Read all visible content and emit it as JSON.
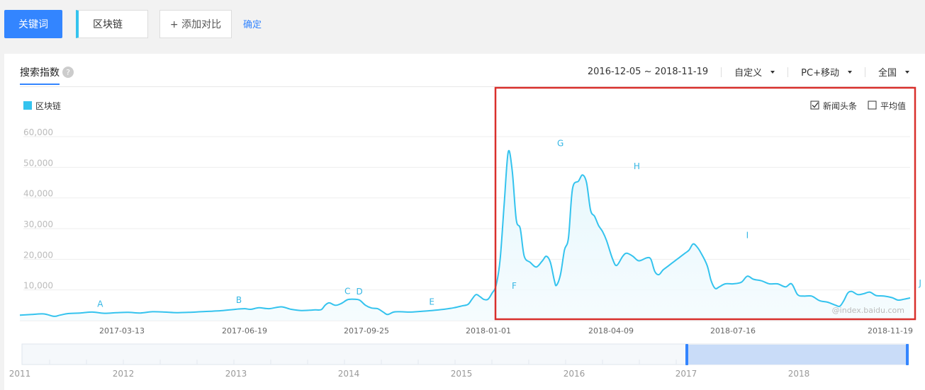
{
  "topbar": {
    "keyword_button": "关键词",
    "keyword": "区块链",
    "add_compare": "+ 添加对比",
    "confirm": "确定"
  },
  "panel": {
    "tab": "搜索指数",
    "help": "?",
    "date_range": "2016-12-05 ~ 2018-11-19",
    "custom": "自定义",
    "device": "PC+移动",
    "region": "全国"
  },
  "options": {
    "news": "新闻头条",
    "average": "平均值"
  },
  "colors": {
    "accent": "#3385ff",
    "series": "#34c3ee",
    "highlight_box": "#d9302c"
  },
  "chart_data": {
    "type": "area",
    "legend": "区块链",
    "watermark": "@index.baidu.com",
    "ylim": [
      0,
      60000
    ],
    "yticks": [
      "60,000",
      "50,000",
      "40,000",
      "30,000",
      "20,000",
      "10,000"
    ],
    "ytick_values": [
      60000,
      50000,
      40000,
      30000,
      20000,
      10000
    ],
    "xticks": [
      "2017-03-13",
      "2017-06-19",
      "2017-09-25",
      "2018-01-01",
      "2018-04-09",
      "2018-07-16",
      "2018-11-19"
    ],
    "series": [
      {
        "name": "区块链",
        "points": [
          [
            0,
            1800
          ],
          [
            6,
            2000
          ],
          [
            12,
            2200
          ],
          [
            17,
            1400
          ],
          [
            20,
            1800
          ],
          [
            24,
            2300
          ],
          [
            30,
            2500
          ],
          [
            36,
            2800
          ],
          [
            42,
            2400
          ],
          [
            48,
            2600
          ],
          [
            54,
            2700
          ],
          [
            60,
            2500
          ],
          [
            66,
            2900
          ],
          [
            72,
            2800
          ],
          [
            78,
            2600
          ],
          [
            84,
            2700
          ],
          [
            90,
            2900
          ],
          [
            96,
            3100
          ],
          [
            101,
            3300
          ],
          [
            106,
            3600
          ],
          [
            109,
            3800
          ],
          [
            112,
            3900
          ],
          [
            115,
            3700
          ],
          [
            119,
            4200
          ],
          [
            124,
            3900
          ],
          [
            130,
            4500
          ],
          [
            135,
            3700
          ],
          [
            140,
            3300
          ],
          [
            144,
            3400
          ],
          [
            147,
            3500
          ],
          [
            150,
            3600
          ],
          [
            152,
            5100
          ],
          [
            154,
            5800
          ],
          [
            157,
            5000
          ],
          [
            160,
            5600
          ],
          [
            163,
            6800
          ],
          [
            166,
            7000
          ],
          [
            169,
            6700
          ],
          [
            172,
            5000
          ],
          [
            175,
            4100
          ],
          [
            178,
            3900
          ],
          [
            181,
            2700
          ],
          [
            183,
            2000
          ],
          [
            186,
            2800
          ],
          [
            189,
            2900
          ],
          [
            194,
            2800
          ],
          [
            199,
            3000
          ],
          [
            205,
            3300
          ],
          [
            211,
            3700
          ],
          [
            216,
            4200
          ],
          [
            220,
            4800
          ],
          [
            223,
            5300
          ],
          [
            225,
            7000
          ],
          [
            227,
            8500
          ],
          [
            229,
            7800
          ],
          [
            231,
            6900
          ],
          [
            233,
            7000
          ],
          [
            235,
            9000
          ],
          [
            237,
            11500
          ],
          [
            239,
            20000
          ],
          [
            241,
            38000
          ],
          [
            243,
            55000
          ],
          [
            245,
            49000
          ],
          [
            247,
            33000
          ],
          [
            249,
            30000
          ],
          [
            251,
            21000
          ],
          [
            254,
            19000
          ],
          [
            257,
            17500
          ],
          [
            260,
            19500
          ],
          [
            262,
            21000
          ],
          [
            264,
            19000
          ],
          [
            266,
            13000
          ],
          [
            267,
            11500
          ],
          [
            269,
            15000
          ],
          [
            271,
            23000
          ],
          [
            273,
            27000
          ],
          [
            275,
            43000
          ],
          [
            278,
            45500
          ],
          [
            280,
            47500
          ],
          [
            282,
            45000
          ],
          [
            284,
            36000
          ],
          [
            286,
            34000
          ],
          [
            288,
            31000
          ],
          [
            290,
            29000
          ],
          [
            292,
            26000
          ],
          [
            295,
            20000
          ],
          [
            297,
            18000
          ],
          [
            300,
            21000
          ],
          [
            302,
            22000
          ],
          [
            305,
            21000
          ],
          [
            308,
            19500
          ],
          [
            312,
            20500
          ],
          [
            314,
            20000
          ],
          [
            316,
            16000
          ],
          [
            318,
            15000
          ],
          [
            320,
            16500
          ],
          [
            322,
            17500
          ],
          [
            325,
            19000
          ],
          [
            328,
            20500
          ],
          [
            331,
            22000
          ],
          [
            333,
            23000
          ],
          [
            335,
            25000
          ],
          [
            337,
            24000
          ],
          [
            339,
            22000
          ],
          [
            342,
            18000
          ],
          [
            344,
            13000
          ],
          [
            346,
            10500
          ],
          [
            348,
            11000
          ],
          [
            351,
            12000
          ],
          [
            355,
            12000
          ],
          [
            359,
            12500
          ],
          [
            362,
            14500
          ],
          [
            365,
            13500
          ],
          [
            369,
            13000
          ],
          [
            373,
            12000
          ],
          [
            377,
            12000
          ],
          [
            381,
            11000
          ],
          [
            384,
            12000
          ],
          [
            387,
            8500
          ],
          [
            390,
            8000
          ],
          [
            394,
            8000
          ],
          [
            398,
            6500
          ],
          [
            402,
            6000
          ],
          [
            406,
            5000
          ],
          [
            408,
            4700
          ],
          [
            410,
            6500
          ],
          [
            412,
            9000
          ],
          [
            414,
            9500
          ],
          [
            417,
            8500
          ],
          [
            420,
            8800
          ],
          [
            423,
            9300
          ],
          [
            426,
            8200
          ],
          [
            430,
            8000
          ],
          [
            434,
            7500
          ],
          [
            437,
            6700
          ],
          [
            440,
            7000
          ],
          [
            443,
            7400
          ]
        ]
      }
    ],
    "annotations": [
      {
        "label": "A",
        "x": 40,
        "y": 2600
      },
      {
        "label": "B",
        "x": 109,
        "y": 3900
      },
      {
        "label": "C",
        "x": 163,
        "y": 6800
      },
      {
        "label": "D",
        "x": 169,
        "y": 6700
      },
      {
        "label": "E",
        "x": 205,
        "y": 3300
      },
      {
        "label": "F",
        "x": 246,
        "y": 8500
      },
      {
        "label": "G",
        "x": 269,
        "y": 55000
      },
      {
        "label": "H",
        "x": 307,
        "y": 47500
      },
      {
        "label": "I",
        "x": 362,
        "y": 25000
      },
      {
        "label": "J",
        "x": 448,
        "y": 9500
      }
    ],
    "overview": {
      "years": [
        "2011",
        "2012",
        "2013",
        "2014",
        "2015",
        "2016",
        "2017",
        "2018"
      ]
    }
  }
}
